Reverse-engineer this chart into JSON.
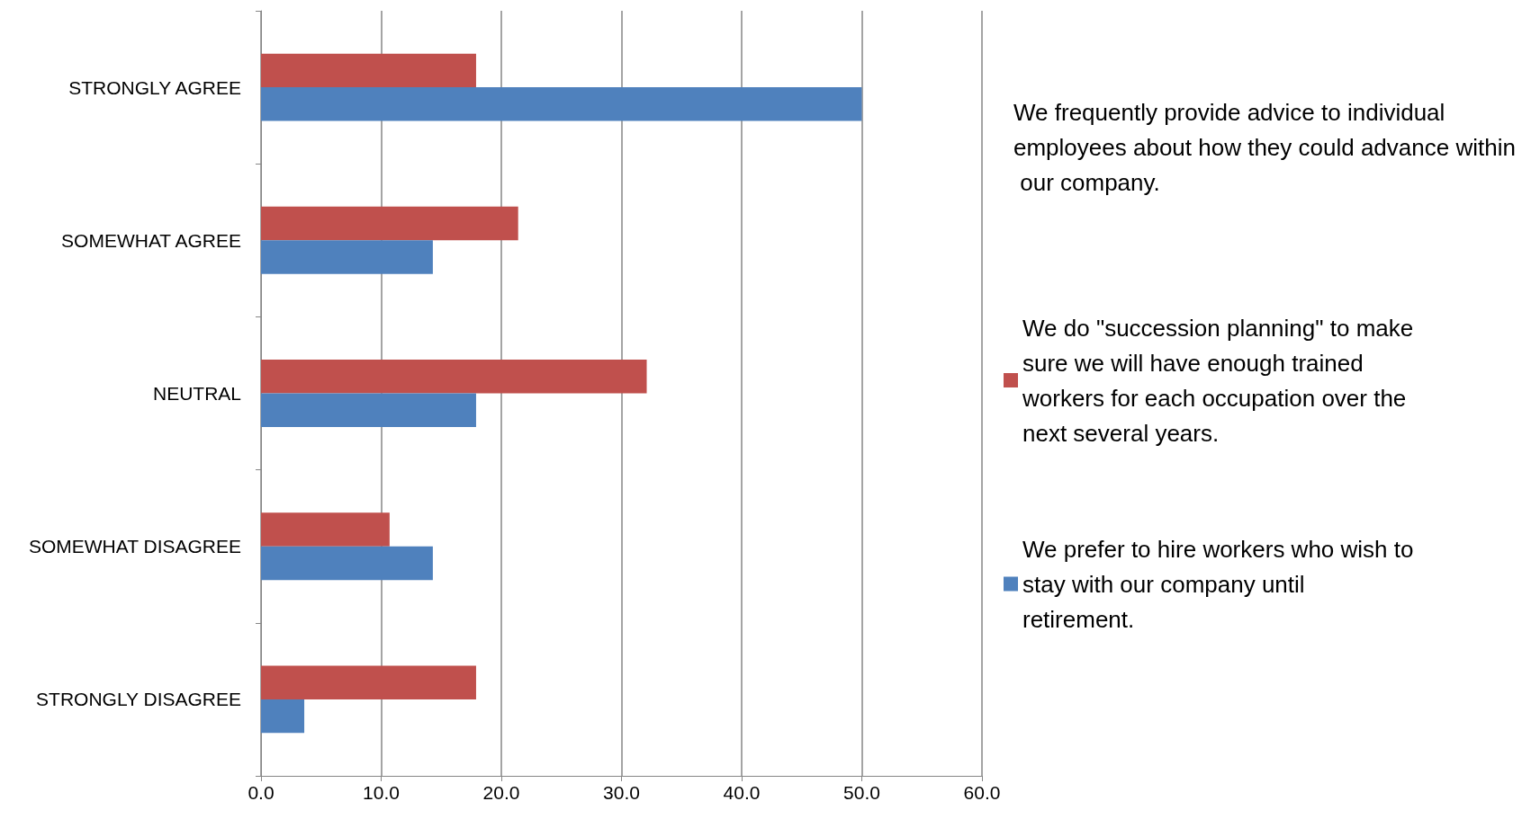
{
  "chart_data": {
    "type": "bar",
    "orientation": "horizontal",
    "categories": [
      "STRONGLY AGREE",
      "SOMEWHAT AGREE",
      "NEUTRAL",
      "SOMEWHAT DISAGREE",
      "STRONGLY DISAGREE"
    ],
    "series": [
      {
        "name": "We do \"succession planning\" to make sure we will have enough trained workers for each occupation over the next several years.",
        "color": "#c0504d",
        "values": [
          17.9,
          21.4,
          32.1,
          10.7,
          17.9
        ]
      },
      {
        "name": "We prefer to hire workers who wish to stay with our company until retirement.",
        "color": "#4f81bd",
        "values": [
          50.0,
          14.3,
          17.9,
          14.3,
          3.6
        ]
      }
    ],
    "annotations": [
      "We frequently provide advice to individual employees about how they could advance within our company."
    ],
    "xlim": [
      0,
      60
    ],
    "xticks": [
      {
        "value": 0,
        "label": "0.0"
      },
      {
        "value": 10,
        "label": "10.0"
      },
      {
        "value": 20,
        "label": "20.0"
      },
      {
        "value": 30,
        "label": "30.0"
      },
      {
        "value": 40,
        "label": "40.0"
      },
      {
        "value": 50,
        "label": "50.0"
      },
      {
        "value": 60,
        "label": "60.0"
      }
    ],
    "grid": "x",
    "legend": "right"
  }
}
